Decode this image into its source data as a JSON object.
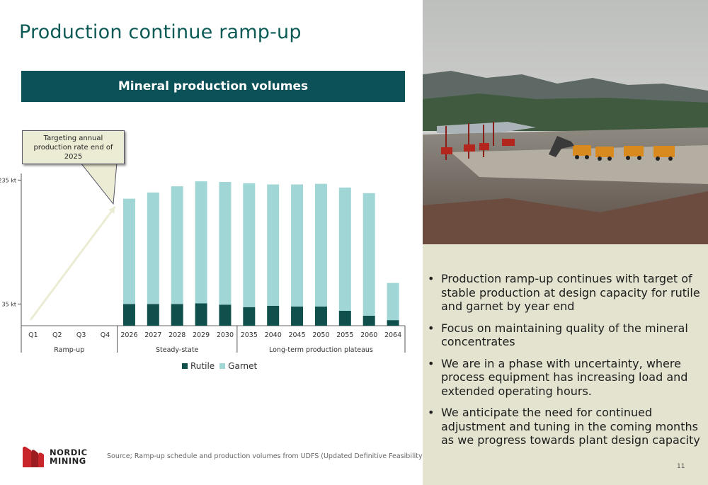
{
  "title": "Production continue ramp-up",
  "banner": "Mineral production volumes",
  "callout": "Targeting annual production rate end of 2025",
  "chart_data": {
    "type": "bar",
    "stacked": true,
    "categories": [
      "Q1",
      "Q2",
      "Q3",
      "Q4",
      "2026",
      "2027",
      "2028",
      "2029",
      "2030",
      "2035",
      "2040",
      "2045",
      "2050",
      "2055",
      "2060",
      "2064"
    ],
    "groups": [
      {
        "label": "Ramp-up",
        "categories": [
          "Q1",
          "Q2",
          "Q3",
          "Q4"
        ]
      },
      {
        "label": "Steady-state",
        "categories": [
          "2026",
          "2027",
          "2028",
          "2029",
          "2030"
        ]
      },
      {
        "label": "Long-term production plateaus",
        "categories": [
          "2035",
          "2040",
          "2045",
          "2050",
          "2055",
          "2060",
          "2064"
        ]
      }
    ],
    "series": [
      {
        "name": "Rutile",
        "color": "#0f4f4c",
        "values": [
          0,
          0,
          0,
          0,
          35,
          35,
          35,
          36,
          34,
          30,
          32,
          31,
          31,
          24,
          16,
          9
        ]
      },
      {
        "name": "Garnet",
        "color": "#a1d6d6",
        "values": [
          0,
          0,
          0,
          0,
          170,
          180,
          190,
          197,
          198,
          200,
          196,
          197,
          198,
          199,
          198,
          60
        ]
      }
    ],
    "y_ticks": [
      {
        "value": 35,
        "label": "35 kt"
      },
      {
        "value": 235,
        "label": "235 kt"
      }
    ],
    "ramp_arrow": {
      "from": [
        "Q1",
        0
      ],
      "to": [
        "Q4",
        190
      ]
    },
    "grid": false,
    "legend_position": "bottom"
  },
  "legend": [
    {
      "label": "Rutile",
      "color": "#0f4f4c"
    },
    {
      "label": "Garnet",
      "color": "#a1d6d6"
    }
  ],
  "source": "Source; Ramp-up schedule and production volumes from UDFS  (Updated Definitive Feasibility Study)",
  "logo": {
    "line1": "NORDIC",
    "line2": "MINING"
  },
  "bullets": [
    "Production ramp-up continues with target of stable production at design capacity for rutile and garnet by year end",
    "Focus on maintaining quality of the mineral concentrates",
    "We are in a phase with uncertainty, where process equipment has increasing load and extended operating hours.",
    "We anticipate the need for continued adjustment and tuning in the coming months as we progress towards plant design capacity"
  ],
  "page_number": "11"
}
